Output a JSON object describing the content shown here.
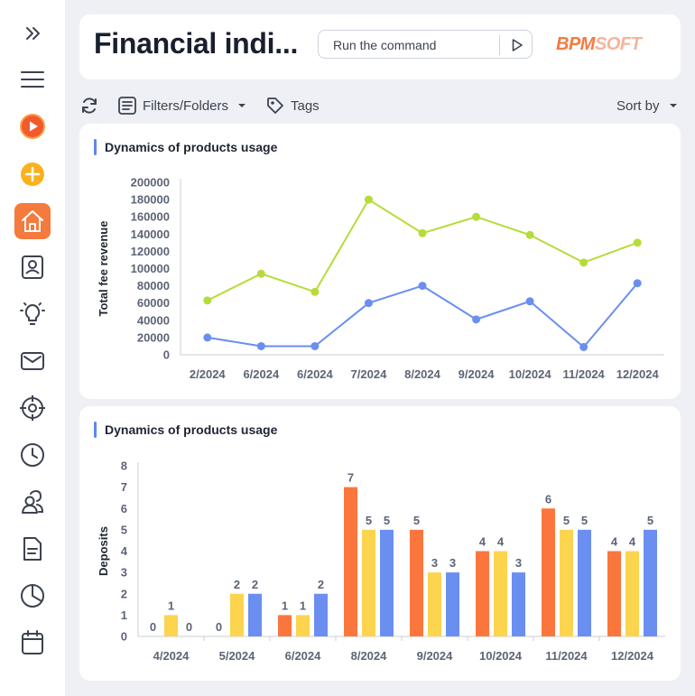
{
  "header": {
    "title": "Financial indi...",
    "command_placeholder": "Run the command",
    "logo_part1": "BPM",
    "logo_part2": "SOFT"
  },
  "toolbar": {
    "filters_label": "Filters/Folders",
    "tags_label": "Tags",
    "sort_label": "Sort by"
  },
  "sidebar": {
    "items": [
      {
        "icon": "chevrons-right-icon"
      },
      {
        "icon": "menu-icon"
      },
      {
        "icon": "play-icon"
      },
      {
        "icon": "add-icon"
      },
      {
        "icon": "home-icon",
        "active": true
      },
      {
        "icon": "contact-icon"
      },
      {
        "icon": "lightbulb-icon"
      },
      {
        "icon": "mail-icon"
      },
      {
        "icon": "target-icon"
      },
      {
        "icon": "clock-icon"
      },
      {
        "icon": "users-icon"
      },
      {
        "icon": "document-icon"
      },
      {
        "icon": "pie-chart-icon"
      },
      {
        "icon": "calendar-icon"
      }
    ]
  },
  "colors": {
    "accent": "#f47a3e",
    "line_green": "#b5dc3a",
    "line_blue": "#6a8ff0",
    "bar_orange": "#fb763d",
    "bar_yellow": "#fcd44e",
    "bar_blue": "#6a8ff0"
  },
  "chart1": {
    "title": "Dynamics of products usage",
    "chart_data": {
      "type": "line",
      "ylabel": "Total fee revenue",
      "ylim": [
        0,
        200000
      ],
      "yticks": [
        0,
        20000,
        40000,
        60000,
        80000,
        100000,
        120000,
        140000,
        160000,
        180000,
        200000
      ],
      "categories": [
        "2/2024",
        "6/2024",
        "6/2024",
        "7/2024",
        "8/2024",
        "9/2024",
        "10/2024",
        "11/2024",
        "12/2024"
      ],
      "series": [
        {
          "color": "#b5dc3a",
          "values": [
            63000,
            94000,
            73000,
            180000,
            141000,
            160000,
            139000,
            107000,
            130000
          ]
        },
        {
          "color": "#6a8ff0",
          "values": [
            20000,
            10000,
            10000,
            60000,
            80000,
            41000,
            62000,
            9000,
            83000
          ]
        }
      ]
    }
  },
  "chart2": {
    "title": "Dynamics of products usage",
    "chart_data": {
      "type": "bar",
      "ylabel": "Deposits",
      "ylim": [
        0,
        8
      ],
      "yticks": [
        0,
        1,
        2,
        3,
        4,
        5,
        6,
        7,
        8
      ],
      "categories": [
        "4/2024",
        "5/2024",
        "6/2024",
        "8/2024",
        "9/2024",
        "10/2024",
        "11/2024",
        "12/2024"
      ],
      "series": [
        {
          "color": "#fb763d",
          "values": [
            0,
            0,
            1,
            7,
            5,
            4,
            6,
            4
          ]
        },
        {
          "color": "#fcd44e",
          "values": [
            1,
            2,
            1,
            5,
            3,
            4,
            5,
            4
          ]
        },
        {
          "color": "#6a8ff0",
          "values": [
            0,
            2,
            2,
            5,
            3,
            3,
            5,
            5
          ]
        }
      ]
    }
  }
}
